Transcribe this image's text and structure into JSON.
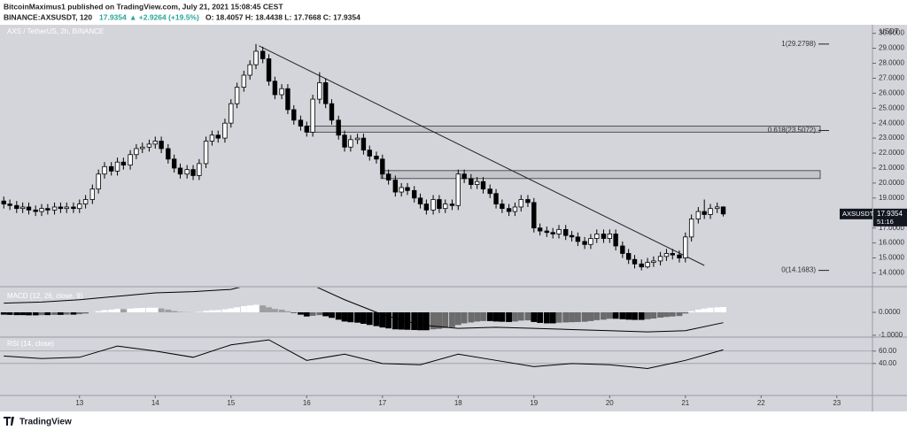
{
  "header": {
    "publisher": "BitcoinMaximus1 published on TradingView.com, July 21, 2021 15:08:45 CEST",
    "symbol": "BINANCE:AXSUSDT, 120",
    "last": "17.9354",
    "change": "▲ +2.9264 (+19.5%)",
    "ohlc": "O: 18.4057 H: 18.4438 L: 17.7668 C: 17.9354"
  },
  "footer": {
    "brand": "TradingView"
  },
  "chart_data": [
    {
      "type": "candlestick",
      "title": "AXS / TetherUS, 2h, BINANCE",
      "y_label": "USDT",
      "symbol_label": "AXSUSDT",
      "countdown": "51:16",
      "up_color": "#ffffff",
      "down_color": "#000000",
      "grid": false,
      "x": [
        12.0,
        12.08,
        12.17,
        12.25,
        12.33,
        12.42,
        12.5,
        12.58,
        12.67,
        12.75,
        12.83,
        12.92,
        13.0,
        13.08,
        13.17,
        13.25,
        13.33,
        13.42,
        13.5,
        13.58,
        13.67,
        13.75,
        13.83,
        13.92,
        14.0,
        14.08,
        14.17,
        14.25,
        14.33,
        14.42,
        14.5,
        14.58,
        14.67,
        14.75,
        14.83,
        14.92,
        15.0,
        15.08,
        15.17,
        15.25,
        15.33,
        15.42,
        15.5,
        15.58,
        15.67,
        15.75,
        15.83,
        15.92,
        16.0,
        16.08,
        16.17,
        16.25,
        16.33,
        16.42,
        16.5,
        16.58,
        16.67,
        16.75,
        16.83,
        16.92,
        17.0,
        17.08,
        17.17,
        17.25,
        17.33,
        17.42,
        17.5,
        17.58,
        17.67,
        17.75,
        17.83,
        17.92,
        18.0,
        18.08,
        18.17,
        18.25,
        18.33,
        18.42,
        18.5,
        18.58,
        18.67,
        18.75,
        18.83,
        18.92,
        19.0,
        19.08,
        19.17,
        19.25,
        19.33,
        19.42,
        19.5,
        19.58,
        19.67,
        19.75,
        19.83,
        19.92,
        20.0,
        20.08,
        20.17,
        20.25,
        20.33,
        20.42,
        20.5,
        20.58,
        20.67,
        20.75,
        20.83,
        20.92,
        21.0,
        21.08,
        21.17,
        21.25,
        21.33,
        21.42,
        21.5
      ],
      "open": [
        18.8,
        18.6,
        18.5,
        18.3,
        18.4,
        18.2,
        18.1,
        18.3,
        18.2,
        18.4,
        18.3,
        18.4,
        18.3,
        18.6,
        18.9,
        19.6,
        20.6,
        21.1,
        20.8,
        21.4,
        21.2,
        21.9,
        22.3,
        22.4,
        22.6,
        22.8,
        22.3,
        21.6,
        21.0,
        20.6,
        20.9,
        20.5,
        21.3,
        22.8,
        23.2,
        23.0,
        24.0,
        25.3,
        26.4,
        27.2,
        27.9,
        28.8,
        28.3,
        26.8,
        25.9,
        26.3,
        24.9,
        24.2,
        23.8,
        23.4,
        25.6,
        26.7,
        25.3,
        24.2,
        23.2,
        22.4,
        22.9,
        23.0,
        22.2,
        21.8,
        21.6,
        20.6,
        20.2,
        19.4,
        19.7,
        19.5,
        19.0,
        18.6,
        18.2,
        18.9,
        18.3,
        18.6,
        18.5,
        20.6,
        20.3,
        19.9,
        20.1,
        19.6,
        19.3,
        18.6,
        18.3,
        18.1,
        18.4,
        18.9,
        18.7,
        17.0,
        16.8,
        16.7,
        16.6,
        16.9,
        16.5,
        16.4,
        16.1,
        15.9,
        16.3,
        16.6,
        16.3,
        16.6,
        15.8,
        15.3,
        14.9,
        14.6,
        14.4,
        14.7,
        14.8,
        15.1,
        15.3,
        15.2,
        15.0,
        16.4,
        17.6,
        18.1,
        17.9,
        18.3,
        18.4057
      ],
      "high": [
        19.1,
        18.9,
        18.8,
        18.7,
        18.7,
        18.5,
        18.6,
        18.6,
        18.7,
        18.7,
        18.7,
        18.7,
        18.9,
        19.2,
        19.9,
        20.9,
        21.4,
        21.4,
        21.7,
        21.7,
        22.2,
        22.6,
        22.7,
        22.9,
        23.1,
        23.1,
        22.6,
        21.9,
        21.3,
        21.2,
        21.2,
        21.6,
        23.1,
        23.5,
        23.5,
        24.3,
        25.6,
        26.7,
        27.5,
        28.2,
        29.28,
        29.1,
        28.6,
        27.1,
        26.6,
        26.6,
        25.2,
        24.5,
        24.1,
        25.9,
        27.4,
        27.0,
        25.6,
        24.5,
        23.5,
        23.2,
        23.3,
        23.3,
        22.5,
        22.1,
        21.9,
        20.9,
        20.5,
        20.0,
        20.0,
        19.8,
        19.3,
        18.9,
        19.2,
        19.2,
        18.9,
        18.9,
        20.9,
        20.9,
        20.6,
        20.4,
        20.4,
        19.9,
        19.6,
        18.9,
        18.6,
        18.7,
        19.2,
        19.2,
        19.0,
        17.3,
        17.1,
        17.0,
        17.2,
        17.2,
        16.8,
        16.7,
        16.4,
        16.6,
        16.9,
        16.9,
        16.9,
        16.9,
        16.1,
        15.6,
        15.2,
        14.9,
        15.0,
        15.1,
        15.4,
        15.6,
        15.6,
        15.5,
        16.7,
        17.9,
        18.4,
        18.9,
        18.6,
        18.7,
        18.4438
      ],
      "low": [
        18.3,
        18.2,
        18.0,
        18.0,
        17.9,
        17.8,
        17.8,
        17.9,
        17.9,
        18.0,
        18.0,
        18.0,
        18.0,
        18.3,
        18.6,
        19.3,
        20.3,
        20.5,
        20.5,
        20.9,
        20.9,
        21.6,
        22.0,
        22.1,
        22.3,
        22.0,
        21.3,
        20.7,
        20.3,
        20.3,
        20.2,
        20.2,
        21.0,
        22.5,
        22.7,
        22.7,
        23.7,
        25.0,
        26.1,
        26.9,
        27.6,
        28.0,
        26.5,
        25.6,
        25.6,
        24.6,
        23.9,
        23.5,
        23.1,
        23.1,
        25.3,
        25.0,
        23.9,
        22.9,
        22.1,
        22.1,
        22.6,
        21.9,
        21.5,
        21.3,
        20.3,
        19.9,
        19.1,
        19.1,
        19.2,
        18.7,
        18.3,
        17.9,
        17.9,
        18.0,
        18.0,
        18.2,
        18.2,
        20.0,
        19.6,
        19.6,
        19.3,
        19.0,
        18.3,
        18.0,
        17.8,
        17.8,
        18.1,
        18.4,
        16.7,
        16.5,
        16.4,
        16.3,
        16.3,
        16.2,
        16.1,
        15.8,
        15.6,
        15.6,
        16.0,
        16.0,
        16.0,
        15.5,
        15.0,
        14.6,
        14.3,
        14.17,
        14.3,
        14.4,
        14.5,
        14.8,
        14.9,
        14.7,
        14.7,
        16.1,
        17.3,
        17.6,
        17.6,
        18.0,
        17.7668
      ],
      "close": [
        18.6,
        18.5,
        18.3,
        18.4,
        18.2,
        18.1,
        18.3,
        18.2,
        18.4,
        18.3,
        18.4,
        18.3,
        18.6,
        18.9,
        19.6,
        20.6,
        21.1,
        20.8,
        21.4,
        21.2,
        21.9,
        22.3,
        22.4,
        22.6,
        22.8,
        22.3,
        21.6,
        21.0,
        20.6,
        20.9,
        20.5,
        21.3,
        22.8,
        23.2,
        23.0,
        24.0,
        25.3,
        26.4,
        27.2,
        27.9,
        28.8,
        28.3,
        26.8,
        25.9,
        26.3,
        24.9,
        24.2,
        23.8,
        23.4,
        25.6,
        26.7,
        25.3,
        24.2,
        23.2,
        22.4,
        22.9,
        23.0,
        22.2,
        21.8,
        21.6,
        20.6,
        20.2,
        19.4,
        19.7,
        19.5,
        19.0,
        18.6,
        18.2,
        18.9,
        18.3,
        18.6,
        18.5,
        20.6,
        20.3,
        19.9,
        20.1,
        19.6,
        19.3,
        18.6,
        18.3,
        18.1,
        18.4,
        18.9,
        18.7,
        17.0,
        16.8,
        16.7,
        16.6,
        16.9,
        16.5,
        16.4,
        16.1,
        15.9,
        16.3,
        16.6,
        16.3,
        16.6,
        15.8,
        15.3,
        14.9,
        14.6,
        14.4,
        14.7,
        14.8,
        15.1,
        15.3,
        15.2,
        15.0,
        16.4,
        17.6,
        18.1,
        17.9,
        18.3,
        18.4057,
        17.9354
      ],
      "xlim": [
        11.95,
        23.47
      ],
      "ylim": [
        13.2,
        30.45
      ],
      "yticks": [
        {
          "value": 14,
          "label": "14.0000"
        },
        {
          "value": 15,
          "label": "15.0000"
        },
        {
          "value": 16,
          "label": "16.0000"
        },
        {
          "value": 17,
          "label": "17.0000"
        },
        {
          "value": 18,
          "label": "18.0000"
        },
        {
          "value": 19,
          "label": "19.0000"
        },
        {
          "value": 20,
          "label": "20.0000"
        },
        {
          "value": 21,
          "label": "21.0000"
        },
        {
          "value": 22,
          "label": "22.0000"
        },
        {
          "value": 23,
          "label": "23.0000"
        },
        {
          "value": 24,
          "label": "24.0000"
        },
        {
          "value": 25,
          "label": "25.0000"
        },
        {
          "value": 26,
          "label": "26.0000"
        },
        {
          "value": 27,
          "label": "27.0000"
        },
        {
          "value": 28,
          "label": "28.0000"
        },
        {
          "value": 29,
          "label": "29.0000"
        },
        {
          "value": 30,
          "label": "30.0000"
        }
      ],
      "fib_levels": [
        {
          "value": 29.2798,
          "label": "1(29.2798)"
        },
        {
          "value": 23.5072,
          "label": "0.618(23.5072)"
        },
        {
          "value": 14.1683,
          "label": "0(14.1683)"
        }
      ],
      "zones": [
        {
          "x": [
            16.0,
            22.78
          ],
          "from": 23.4,
          "to": 23.8
        },
        {
          "x": [
            16.98,
            22.78
          ],
          "from": 20.3,
          "to": 20.83
        }
      ],
      "trendline": {
        "x": [
          15.37,
          21.25
        ],
        "y": [
          29.16,
          14.5
        ]
      }
    },
    {
      "type": "macd",
      "title": "MACD (12, 26, close, 9)",
      "hist_colors": [
        "#ffffff",
        "#9e9e9e",
        "#000000",
        "#6b6b6b"
      ],
      "line_color": "#000000",
      "histogram": [
        -0.1,
        -0.11,
        -0.12,
        -0.12,
        -0.13,
        -0.13,
        -0.12,
        -0.12,
        -0.11,
        -0.11,
        -0.1,
        -0.1,
        -0.08,
        -0.05,
        0.0,
        0.05,
        0.1,
        0.12,
        0.15,
        0.14,
        0.16,
        0.18,
        0.19,
        0.2,
        0.2,
        0.17,
        0.12,
        0.06,
        0.02,
        0.01,
        0.0,
        0.02,
        0.06,
        0.09,
        0.1,
        0.13,
        0.17,
        0.22,
        0.27,
        0.3,
        0.33,
        0.3,
        0.22,
        0.15,
        0.12,
        0.05,
        -0.02,
        -0.1,
        -0.18,
        -0.15,
        -0.12,
        -0.17,
        -0.24,
        -0.32,
        -0.4,
        -0.43,
        -0.45,
        -0.5,
        -0.55,
        -0.6,
        -0.66,
        -0.7,
        -0.74,
        -0.75,
        -0.76,
        -0.77,
        -0.78,
        -0.78,
        -0.74,
        -0.72,
        -0.68,
        -0.65,
        -0.55,
        -0.48,
        -0.44,
        -0.4,
        -0.38,
        -0.38,
        -0.4,
        -0.41,
        -0.42,
        -0.4,
        -0.36,
        -0.35,
        -0.42,
        -0.46,
        -0.48,
        -0.48,
        -0.45,
        -0.44,
        -0.43,
        -0.42,
        -0.41,
        -0.38,
        -0.34,
        -0.32,
        -0.28,
        -0.28,
        -0.3,
        -0.32,
        -0.33,
        -0.33,
        -0.3,
        -0.27,
        -0.23,
        -0.2,
        -0.18,
        -0.16,
        -0.05,
        0.05,
        0.12,
        0.16,
        0.2,
        0.22,
        0.23
      ],
      "macd": {
        "x": [
          12.0,
          12.5,
          13.0,
          13.5,
          14.0,
          14.5,
          15.0,
          15.5,
          16.0,
          16.5,
          17.0,
          17.5,
          18.0,
          18.5,
          19.0,
          19.5,
          20.0,
          20.5,
          21.0,
          21.5
        ],
        "values": [
          0.4,
          0.45,
          0.55,
          0.7,
          0.85,
          0.9,
          1.0,
          1.4,
          1.3,
          0.55,
          -0.1,
          -0.55,
          -0.7,
          -0.65,
          -0.7,
          -0.75,
          -0.8,
          -0.85,
          -0.8,
          -0.45
        ]
      },
      "ylim": [
        -1.04,
        1.08
      ],
      "yticks": [
        {
          "value": 0,
          "label": "0.0000"
        },
        {
          "value": -1,
          "label": "-1.0000"
        }
      ]
    },
    {
      "type": "rsi",
      "title": "RSI (14, close)",
      "color": "#000000",
      "x": [
        12.0,
        12.5,
        13.0,
        13.5,
        14.0,
        14.5,
        15.0,
        15.5,
        16.0,
        16.5,
        17.0,
        17.5,
        18.0,
        18.5,
        19.0,
        19.5,
        20.0,
        20.5,
        21.0,
        21.5
      ],
      "values": [
        52,
        48,
        50,
        68,
        60,
        50,
        70,
        78,
        45,
        55,
        40,
        38,
        55,
        45,
        35,
        40,
        38,
        32,
        45,
        62
      ],
      "ylim": [
        -10,
        81
      ],
      "yticks": [
        {
          "value": 60,
          "label": "60.00"
        },
        {
          "value": 40,
          "label": "40.00"
        }
      ],
      "xlim": [
        11.95,
        23.47
      ],
      "xticks": [
        13,
        14,
        15,
        16,
        17,
        18,
        19,
        20,
        21,
        22,
        23
      ]
    }
  ]
}
